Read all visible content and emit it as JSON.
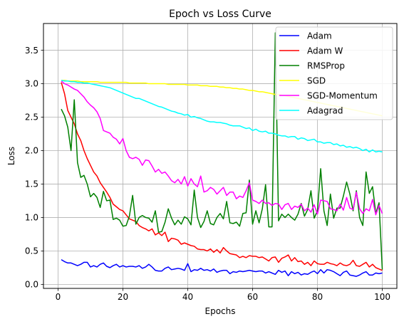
{
  "chart_data": {
    "type": "line",
    "title": "Epoch vs Loss Curve",
    "xlabel": "Epochs",
    "ylabel": "Loss",
    "xlim": [
      -4.5,
      104.5
    ],
    "ylim": [
      -0.06,
      3.9
    ],
    "xticks": [
      0,
      20,
      40,
      60,
      80,
      100
    ],
    "yticks": [
      0.0,
      0.5,
      1.0,
      1.5,
      2.0,
      2.5,
      3.0,
      3.5
    ],
    "xtick_labels": [
      "0",
      "20",
      "40",
      "60",
      "80",
      "100"
    ],
    "ytick_labels": [
      "0.0",
      "0.5",
      "1.0",
      "1.5",
      "2.0",
      "2.5",
      "3.0",
      "3.5"
    ],
    "grid": true,
    "legend_position": "top-right",
    "series": [
      {
        "name": "Adam",
        "color": "#0000ff",
        "x_start": 1,
        "x_step": 1,
        "values": [
          0.37,
          0.34,
          0.32,
          0.32,
          0.3,
          0.28,
          0.3,
          0.33,
          0.33,
          0.26,
          0.28,
          0.26,
          0.3,
          0.32,
          0.27,
          0.25,
          0.28,
          0.3,
          0.26,
          0.28,
          0.26,
          0.27,
          0.27,
          0.26,
          0.28,
          0.24,
          0.26,
          0.3,
          0.26,
          0.21,
          0.2,
          0.2,
          0.24,
          0.26,
          0.22,
          0.23,
          0.24,
          0.23,
          0.21,
          0.31,
          0.19,
          0.22,
          0.21,
          0.24,
          0.21,
          0.22,
          0.2,
          0.23,
          0.18,
          0.2,
          0.21,
          0.21,
          0.16,
          0.19,
          0.18,
          0.2,
          0.19,
          0.2,
          0.21,
          0.2,
          0.19,
          0.2,
          0.2,
          0.17,
          0.19,
          0.17,
          0.15,
          0.21,
          0.18,
          0.2,
          0.13,
          0.19,
          0.16,
          0.18,
          0.14,
          0.16,
          0.15,
          0.18,
          0.2,
          0.16,
          0.22,
          0.17,
          0.22,
          0.21,
          0.19,
          0.16,
          0.13,
          0.18,
          0.2,
          0.14,
          0.13,
          0.12,
          0.14,
          0.17,
          0.19,
          0.14,
          0.14,
          0.17,
          0.16,
          0.17
        ]
      },
      {
        "name": "Adam W",
        "color": "#ff0000",
        "x_start": 1,
        "x_step": 1,
        "values": [
          3.02,
          2.85,
          2.6,
          2.5,
          2.4,
          2.25,
          2.15,
          2.0,
          1.88,
          1.78,
          1.68,
          1.62,
          1.52,
          1.45,
          1.38,
          1.3,
          1.2,
          1.16,
          1.12,
          1.1,
          1.04,
          0.98,
          0.96,
          0.94,
          0.88,
          0.85,
          0.83,
          0.8,
          0.83,
          0.74,
          0.77,
          0.73,
          0.78,
          0.64,
          0.69,
          0.68,
          0.66,
          0.6,
          0.62,
          0.6,
          0.58,
          0.57,
          0.53,
          0.52,
          0.52,
          0.5,
          0.53,
          0.48,
          0.52,
          0.47,
          0.55,
          0.5,
          0.46,
          0.45,
          0.44,
          0.4,
          0.42,
          0.4,
          0.43,
          0.42,
          0.42,
          0.4,
          0.41,
          0.38,
          0.35,
          0.4,
          0.41,
          0.33,
          0.39,
          0.41,
          0.44,
          0.35,
          0.4,
          0.34,
          0.35,
          0.3,
          0.33,
          0.28,
          0.35,
          0.31,
          0.3,
          0.3,
          0.33,
          0.31,
          0.3,
          0.28,
          0.32,
          0.29,
          0.28,
          0.3,
          0.36,
          0.28,
          0.27,
          0.3,
          0.33,
          0.26,
          0.3,
          0.25,
          0.23,
          0.21
        ]
      },
      {
        "name": "RMSProp",
        "color": "#008000",
        "x_start": 1,
        "x_step": 1,
        "values": [
          2.62,
          2.52,
          2.35,
          2.0,
          2.76,
          1.82,
          1.6,
          1.63,
          1.5,
          1.31,
          1.36,
          1.3,
          1.15,
          1.39,
          1.25,
          1.26,
          0.97,
          0.99,
          0.96,
          0.87,
          0.88,
          1.02,
          1.33,
          0.9,
          1.0,
          1.03,
          1.0,
          0.99,
          0.93,
          1.1,
          0.78,
          0.79,
          0.93,
          1.13,
          0.99,
          0.89,
          0.96,
          0.9,
          1.01,
          0.98,
          0.89,
          1.41,
          1.0,
          0.85,
          0.94,
          1.1,
          0.91,
          0.89,
          1.0,
          1.06,
          0.98,
          1.24,
          0.92,
          0.91,
          0.93,
          0.87,
          1.06,
          1.07,
          1.56,
          0.9,
          1.1,
          0.92,
          1.13,
          1.49,
          0.86,
          0.86,
          3.76,
          0.95,
          1.05,
          1.0,
          1.05,
          1.0,
          0.96,
          1.05,
          1.21,
          1.02,
          1.12,
          1.4,
          0.99,
          1.1,
          1.73,
          1.1,
          0.88,
          1.35,
          0.99,
          1.14,
          1.14,
          1.32,
          1.53,
          1.35,
          1.1,
          1.4,
          1.0,
          0.88,
          1.68,
          1.36,
          1.46,
          1.06,
          1.22,
          0.22
        ]
      },
      {
        "name": "SGD",
        "color": "#ffff00",
        "x_start": 1,
        "x_step": 1,
        "values": [
          3.05,
          3.05,
          3.04,
          3.04,
          3.04,
          3.04,
          3.03,
          3.03,
          3.03,
          3.03,
          3.03,
          3.03,
          3.02,
          3.02,
          3.02,
          3.02,
          3.02,
          3.02,
          3.02,
          3.02,
          3.02,
          3.01,
          3.01,
          3.01,
          3.01,
          3.01,
          3.01,
          3.0,
          3.0,
          3.0,
          3.0,
          3.0,
          3.0,
          2.99,
          2.99,
          2.99,
          2.99,
          2.99,
          2.99,
          2.98,
          2.98,
          2.98,
          2.98,
          2.97,
          2.97,
          2.97,
          2.96,
          2.96,
          2.96,
          2.95,
          2.95,
          2.94,
          2.94,
          2.93,
          2.93,
          2.92,
          2.92,
          2.91,
          2.9,
          2.9,
          2.89,
          2.88,
          2.88,
          2.87,
          2.86,
          2.85,
          2.84,
          2.84,
          2.83,
          2.82,
          2.81,
          2.8,
          2.79,
          2.78,
          2.77,
          2.76,
          2.75,
          2.74,
          2.73,
          2.72,
          2.71,
          2.7,
          2.69,
          2.68,
          2.67,
          2.66,
          2.65,
          2.64,
          2.63,
          2.62,
          2.61,
          2.6,
          2.59,
          2.58,
          2.57,
          2.56,
          2.55,
          2.54,
          2.53,
          2.52
        ]
      },
      {
        "name": "SGD-Momentum",
        "color": "#ff00ff",
        "x_start": 1,
        "x_step": 1,
        "values": [
          3.04,
          3.0,
          2.98,
          2.95,
          2.92,
          2.9,
          2.85,
          2.8,
          2.73,
          2.68,
          2.64,
          2.58,
          2.48,
          2.3,
          2.28,
          2.26,
          2.2,
          2.17,
          2.1,
          2.18,
          2.0,
          1.9,
          1.88,
          1.9,
          1.87,
          1.78,
          1.86,
          1.85,
          1.77,
          1.68,
          1.72,
          1.66,
          1.68,
          1.62,
          1.55,
          1.52,
          1.57,
          1.5,
          1.61,
          1.47,
          1.58,
          1.5,
          1.46,
          1.62,
          1.38,
          1.4,
          1.45,
          1.42,
          1.35,
          1.4,
          1.45,
          1.33,
          1.38,
          1.38,
          1.28,
          1.32,
          1.3,
          1.4,
          1.52,
          1.26,
          1.24,
          1.21,
          1.26,
          1.21,
          1.22,
          1.18,
          1.21,
          1.2,
          1.12,
          1.19,
          1.21,
          1.12,
          1.17,
          1.15,
          1.2,
          1.1,
          1.14,
          1.08,
          1.19,
          1.05,
          1.26,
          1.25,
          1.24,
          1.13,
          1.12,
          1.1,
          1.2,
          1.11,
          1.3,
          1.14,
          1.12,
          1.38,
          1.13,
          1.06,
          1.13,
          1.1,
          1.27,
          1.04,
          1.18,
          1.06
        ]
      },
      {
        "name": "Adagrad",
        "color": "#00ffff",
        "x_start": 1,
        "x_step": 1,
        "values": [
          3.05,
          3.04,
          3.04,
          3.03,
          3.03,
          3.02,
          3.02,
          3.01,
          3.01,
          3.0,
          2.99,
          2.98,
          2.97,
          2.96,
          2.95,
          2.94,
          2.92,
          2.9,
          2.88,
          2.86,
          2.84,
          2.82,
          2.8,
          2.78,
          2.78,
          2.76,
          2.74,
          2.72,
          2.7,
          2.68,
          2.66,
          2.65,
          2.63,
          2.61,
          2.59,
          2.58,
          2.56,
          2.55,
          2.53,
          2.54,
          2.5,
          2.51,
          2.49,
          2.48,
          2.46,
          2.44,
          2.43,
          2.43,
          2.42,
          2.42,
          2.41,
          2.4,
          2.38,
          2.37,
          2.37,
          2.37,
          2.35,
          2.33,
          2.34,
          2.3,
          2.32,
          2.29,
          2.28,
          2.29,
          2.26,
          2.26,
          2.25,
          2.23,
          2.22,
          2.22,
          2.2,
          2.21,
          2.21,
          2.17,
          2.19,
          2.18,
          2.15,
          2.16,
          2.17,
          2.13,
          2.13,
          2.11,
          2.12,
          2.12,
          2.09,
          2.1,
          2.07,
          2.08,
          2.05,
          2.06,
          2.04,
          2.05,
          2.03,
          2.0,
          2.02,
          1.98,
          2.01,
          1.98,
          1.99,
          1.98
        ]
      }
    ]
  }
}
